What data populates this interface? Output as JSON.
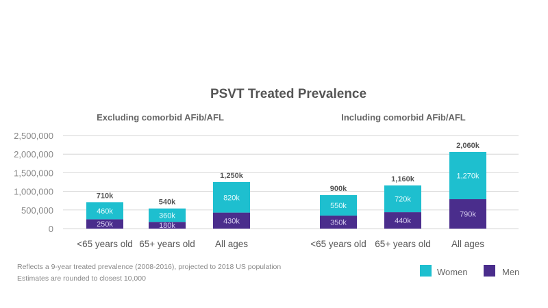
{
  "chart_data": [
    {
      "type": "bar",
      "stacked": true,
      "title": "PSVT Treated Prevalence",
      "subtitle": "Excluding comorbid AFib/AFL",
      "categories": [
        "<65 years old",
        "65+ years old",
        "All ages"
      ],
      "series": [
        {
          "name": "Men",
          "values": [
            250000,
            180000,
            430000
          ],
          "labels": [
            "250k",
            "180k",
            "430k"
          ],
          "color": "#4a2d8c"
        },
        {
          "name": "Women",
          "values": [
            460000,
            360000,
            820000
          ],
          "labels": [
            "460k",
            "360k",
            "820k"
          ],
          "color": "#1ebfcf"
        }
      ],
      "totals": [
        "710k",
        "540k",
        "1,250k"
      ],
      "ylim": [
        0,
        2500000
      ],
      "yticks": [
        "0",
        "500,000",
        "1,000,000",
        "1,500,000",
        "2,000,000",
        "2,500,000"
      ],
      "grid": true
    },
    {
      "type": "bar",
      "stacked": true,
      "subtitle": "Including comorbid AFib/AFL",
      "categories": [
        "<65 years old",
        "65+ years old",
        "All ages"
      ],
      "series": [
        {
          "name": "Men",
          "values": [
            350000,
            440000,
            790000
          ],
          "labels": [
            "350k",
            "440k",
            "790k"
          ],
          "color": "#4a2d8c"
        },
        {
          "name": "Women",
          "values": [
            550000,
            720000,
            1270000
          ],
          "labels": [
            "550k",
            "720k",
            "1,270k"
          ],
          "color": "#1ebfcf"
        }
      ],
      "totals": [
        "900k",
        "1,160k",
        "2,060k"
      ],
      "ylim": [
        0,
        2500000
      ],
      "grid": true
    }
  ],
  "legend": {
    "placement": "bottom-right",
    "items": [
      {
        "label": "Women",
        "color": "#1ebfcf"
      },
      {
        "label": "Men",
        "color": "#4a2d8c"
      }
    ]
  },
  "footnotes": [
    "Reflects a 9-year treated prevalence (2008-2016), projected to 2018 US population",
    "Estimates are rounded to closest 10,000"
  ]
}
